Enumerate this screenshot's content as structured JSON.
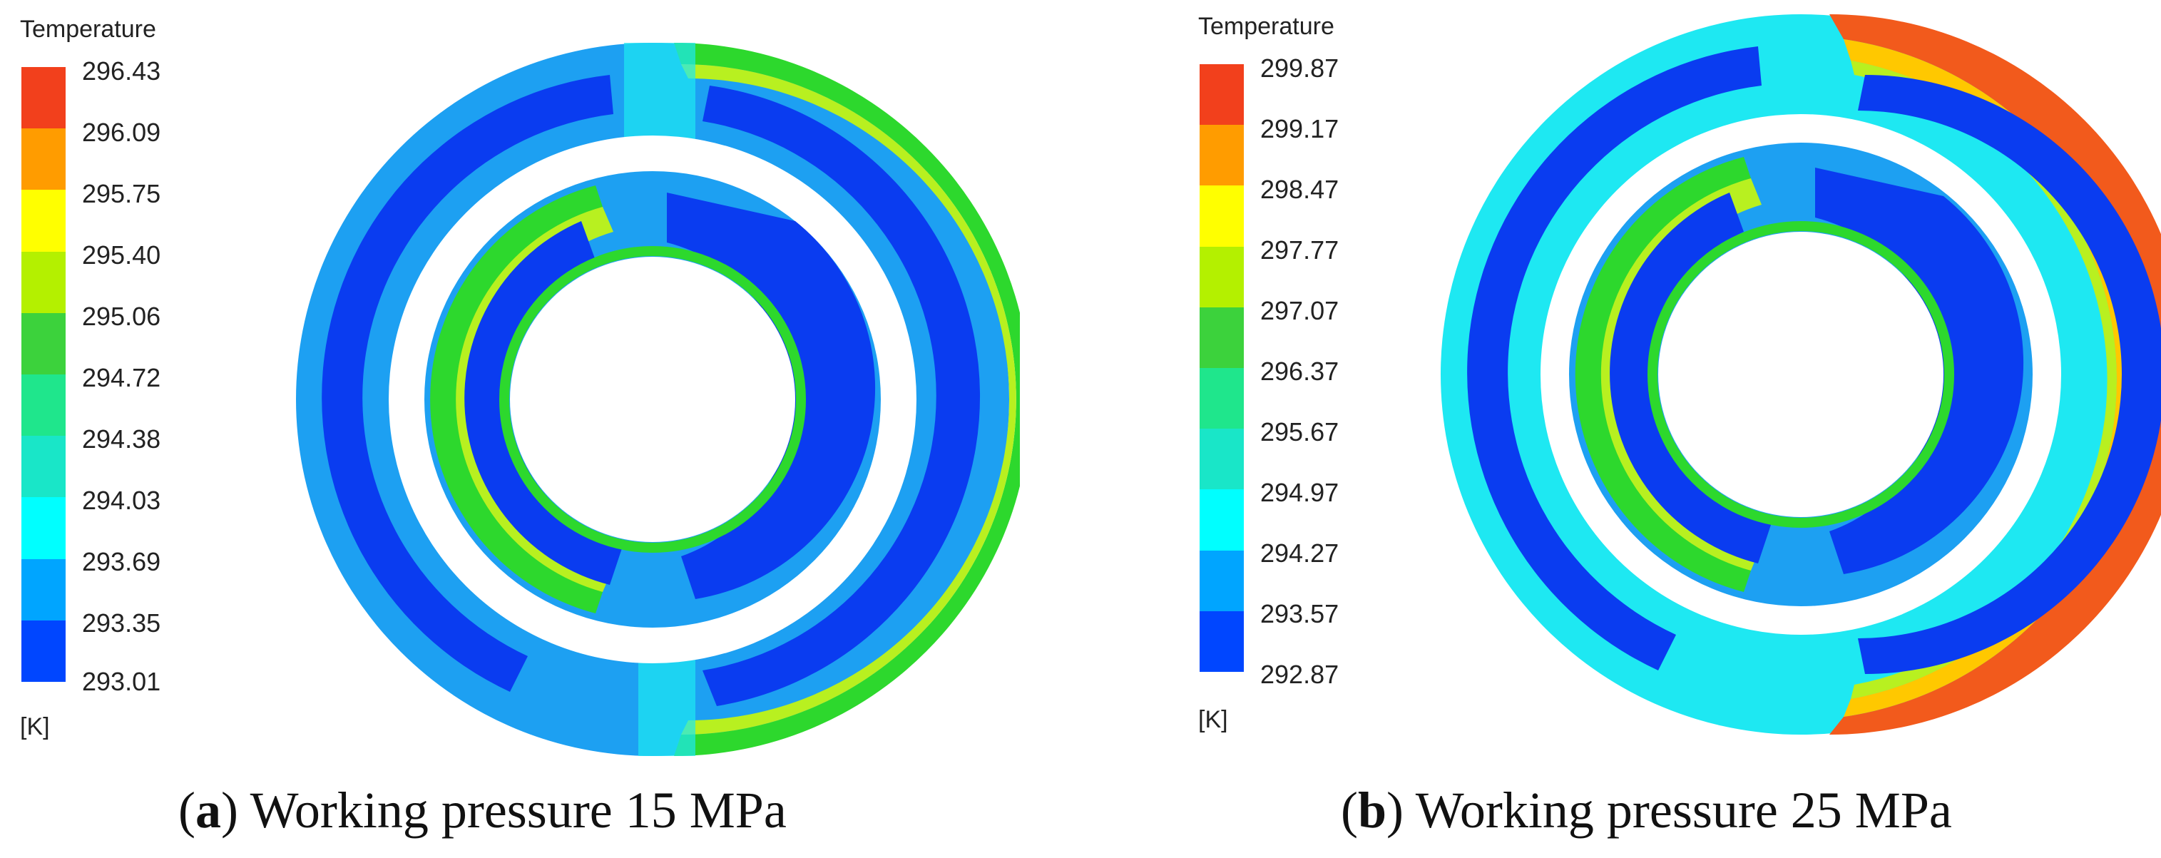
{
  "panels": [
    {
      "legend": {
        "title": "Temperature",
        "unit": "[K]",
        "ticks": [
          "296.43",
          "296.09",
          "295.75",
          "295.40",
          "295.06",
          "294.72",
          "294.38",
          "294.03",
          "293.69",
          "293.35",
          "293.01"
        ],
        "colors": [
          "#f2401c",
          "#ff9c00",
          "#ffff00",
          "#b4f000",
          "#3cd23c",
          "#1fe68c",
          "#19e6c8",
          "#00ffff",
          "#00a5ff",
          "#0046ff"
        ]
      },
      "caption": {
        "letter": "a",
        "text": "Working pressure 15 MPa"
      }
    },
    {
      "legend": {
        "title": "Temperature",
        "unit": "[K]",
        "ticks": [
          "299.87",
          "299.17",
          "298.47",
          "297.77",
          "297.07",
          "296.37",
          "295.67",
          "294.97",
          "294.27",
          "293.57",
          "292.87"
        ],
        "colors": [
          "#f2401c",
          "#ff9c00",
          "#ffff00",
          "#b4f000",
          "#3cd23c",
          "#1fe68c",
          "#19e6c8",
          "#00ffff",
          "#00a5ff",
          "#0046ff"
        ]
      },
      "caption": {
        "letter": "b",
        "text": "Working pressure 25 MPa"
      }
    }
  ],
  "colors": {
    "base_light_blue": "#1da0f2",
    "dark_blue": "#0a3cf0",
    "cyan": "#1ee8f2",
    "green": "#2dd82d",
    "yellow_green": "#b8f020",
    "orange_red": "#f25a1c"
  }
}
